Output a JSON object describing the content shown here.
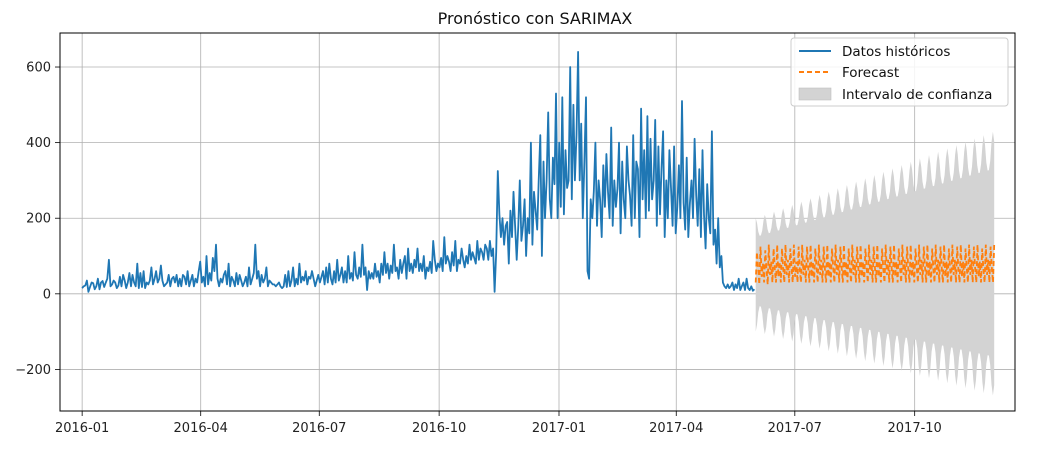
{
  "chart_data": {
    "type": "line",
    "title": "Pronóstico con SARIMAX",
    "xlabel": "",
    "ylabel": "",
    "x_range": [
      "2015-12-15",
      "2017-12-17"
    ],
    "ylim": [
      -310,
      690
    ],
    "grid": true,
    "legend_position": "top-right",
    "x_ticks": [
      "2016-01",
      "2016-04",
      "2016-07",
      "2016-10",
      "2017-01",
      "2017-04",
      "2017-07",
      "2017-10"
    ],
    "y_ticks": [
      600,
      400,
      200,
      0,
      -200
    ],
    "y_tick_labels": [
      "600",
      "400",
      "200",
      "0",
      "−200"
    ],
    "colors": {
      "historical": "#1f77b4",
      "forecast": "#ff7f0e",
      "confidence_fill": "#d3d3d3",
      "grid": "#b0b0b0"
    },
    "series": [
      {
        "name": "Datos históricos",
        "style": "solid",
        "x_start": "2016-01-01",
        "x_end": "2017-05-31",
        "sampling": "daily (approximate reading)",
        "values": [
          15,
          20,
          22,
          35,
          5,
          18,
          30,
          28,
          12,
          20,
          40,
          12,
          30,
          34,
          18,
          30,
          40,
          90,
          20,
          25,
          35,
          30,
          15,
          22,
          45,
          20,
          50,
          35,
          15,
          30,
          55,
          20,
          50,
          30,
          20,
          80,
          15,
          55,
          18,
          60,
          15,
          30,
          25,
          35,
          70,
          25,
          40,
          60,
          30,
          40,
          75,
          35,
          20,
          25,
          30,
          50,
          20,
          40,
          45,
          30,
          50,
          20,
          40,
          20,
          50,
          45,
          25,
          60,
          20,
          35,
          50,
          20,
          40,
          30,
          60,
          85,
          30,
          45,
          20,
          100,
          25,
          55,
          35,
          95,
          60,
          130,
          40,
          20,
          40,
          30,
          50,
          60,
          25,
          80,
          20,
          45,
          35,
          20,
          55,
          25,
          50,
          35,
          20,
          30,
          45,
          20,
          70,
          25,
          40,
          55,
          130,
          40,
          60,
          20,
          50,
          30,
          40,
          70,
          20,
          35,
          30,
          25,
          25,
          20,
          25,
          30,
          20,
          15,
          20,
          50,
          18,
          60,
          20,
          35,
          70,
          20,
          40,
          25,
          80,
          30,
          45,
          35,
          60,
          25,
          45,
          40,
          60,
          40,
          20,
          35,
          50,
          30,
          45,
          60,
          25,
          70,
          30,
          80,
          40,
          25,
          60,
          30,
          90,
          35,
          50,
          70,
          30,
          60,
          30,
          100,
          40,
          55,
          35,
          110,
          50,
          40,
          70,
          45,
          130,
          50,
          70,
          10,
          60,
          40,
          55,
          40,
          80,
          45,
          60,
          30,
          80,
          50,
          110,
          55,
          80,
          40,
          75,
          55,
          130,
          60,
          70,
          40,
          90,
          55,
          80,
          100,
          40,
          120,
          60,
          80,
          55,
          90,
          70,
          120,
          60,
          80,
          60,
          100,
          40,
          70,
          60,
          85,
          55,
          140,
          90,
          60,
          80,
          70,
          95,
          60,
          150,
          80,
          100,
          85,
          60,
          110,
          75,
          140,
          60,
          90,
          80,
          120,
          90,
          70,
          100,
          80,
          130,
          90,
          110,
          95,
          80,
          140,
          90,
          120,
          110,
          90,
          130,
          120,
          90,
          140,
          100,
          120,
          5,
          110,
          325,
          210,
          150,
          200,
          130,
          180,
          190,
          80,
          220,
          150,
          270,
          180,
          90,
          180,
          300,
          140,
          180,
          250,
          100,
          200,
          160,
          400,
          130,
          270,
          220,
          170,
          300,
          420,
          100,
          350,
          200,
          300,
          480,
          250,
          200,
          360,
          290,
          530,
          200,
          400,
          230,
          520,
          210,
          380,
          280,
          300,
          600,
          250,
          500,
          300,
          420,
          640,
          300,
          450,
          200,
          350,
          520,
          60,
          40,
          250,
          200,
          270,
          400,
          180,
          300,
          250,
          150,
          340,
          230,
          370,
          270,
          200,
          440,
          180,
          300,
          230,
          280,
          400,
          160,
          350,
          250,
          200,
          390,
          300,
          260,
          180,
          420,
          200,
          350,
          330,
          150,
          490,
          250,
          380,
          200,
          470,
          220,
          410,
          250,
          300,
          460,
          180,
          390,
          210,
          330,
          430,
          150,
          300,
          200,
          380,
          280,
          180,
          390,
          160,
          230,
          340,
          200,
          510,
          240,
          170,
          360,
          150,
          240,
          300,
          200,
          410,
          260,
          180,
          330,
          150,
          380,
          210,
          120,
          290,
          200,
          160,
          430,
          130,
          170,
          80,
          200,
          70,
          100,
          30,
          20,
          15,
          25,
          15,
          20,
          30,
          10,
          25,
          15,
          40,
          10,
          20,
          30,
          10,
          40,
          15,
          10,
          20,
          8,
          12
        ]
      },
      {
        "name": "Forecast",
        "style": "dashed",
        "x_start": "2017-06-01",
        "x_end": "2017-12-01",
        "pattern_note": "weekly seasonal cycle oscillating between roughly 30 and 130",
        "values": [
          30,
          110,
          70,
          25,
          125,
          45,
          80,
          30,
          115,
          65,
          25,
          130,
          50,
          85,
          30,
          120,
          65,
          30,
          130,
          45,
          85,
          30,
          120,
          70,
          30,
          130,
          50,
          90,
          30,
          120,
          70,
          30,
          130,
          45,
          85,
          30,
          125,
          65,
          30,
          130,
          50,
          90,
          30,
          125,
          70,
          30,
          130,
          45,
          85,
          30,
          120,
          70,
          30,
          130,
          50,
          90,
          30,
          125,
          65,
          30,
          130,
          45,
          85,
          30,
          120,
          70,
          30,
          130,
          50,
          90,
          30,
          125,
          70,
          30,
          130,
          45,
          85,
          30,
          120,
          65,
          30,
          130,
          50,
          90,
          30,
          125,
          70,
          30,
          130,
          45,
          85,
          30,
          120,
          70,
          30,
          130,
          50,
          90,
          30,
          125,
          70,
          30,
          130,
          45,
          85,
          30,
          120,
          65,
          30,
          130,
          50,
          90,
          30,
          125,
          70,
          30,
          130,
          45,
          85,
          30,
          120,
          70,
          30,
          130,
          50,
          90,
          30,
          125,
          65,
          30,
          130,
          45,
          85,
          30,
          120,
          70,
          30,
          130,
          50,
          90,
          30,
          125,
          70,
          30,
          130,
          45,
          85,
          30,
          120,
          65,
          30,
          130,
          50,
          90,
          30,
          125,
          70,
          30,
          130,
          45,
          85,
          30,
          120,
          70,
          30,
          130,
          50,
          90,
          30,
          125,
          65,
          30,
          130,
          45,
          85,
          30,
          120,
          70,
          30,
          130,
          50,
          90,
          30,
          125,
          70,
          30,
          130,
          45,
          85,
          30,
          120,
          65,
          30,
          130,
          50,
          90,
          30,
          125,
          70,
          30,
          130
        ]
      },
      {
        "name": "Intervalo de confianza",
        "style": "band",
        "x_start": "2017-06-01",
        "x_end": "2017-12-01",
        "upper_envelope": {
          "start": 200,
          "end": 430
        },
        "lower_envelope": {
          "start": -100,
          "end": -270
        },
        "inner_upper": {
          "start": 150,
          "end": 330
        },
        "inner_lower": {
          "start": -30,
          "end": -165
        }
      }
    ]
  }
}
